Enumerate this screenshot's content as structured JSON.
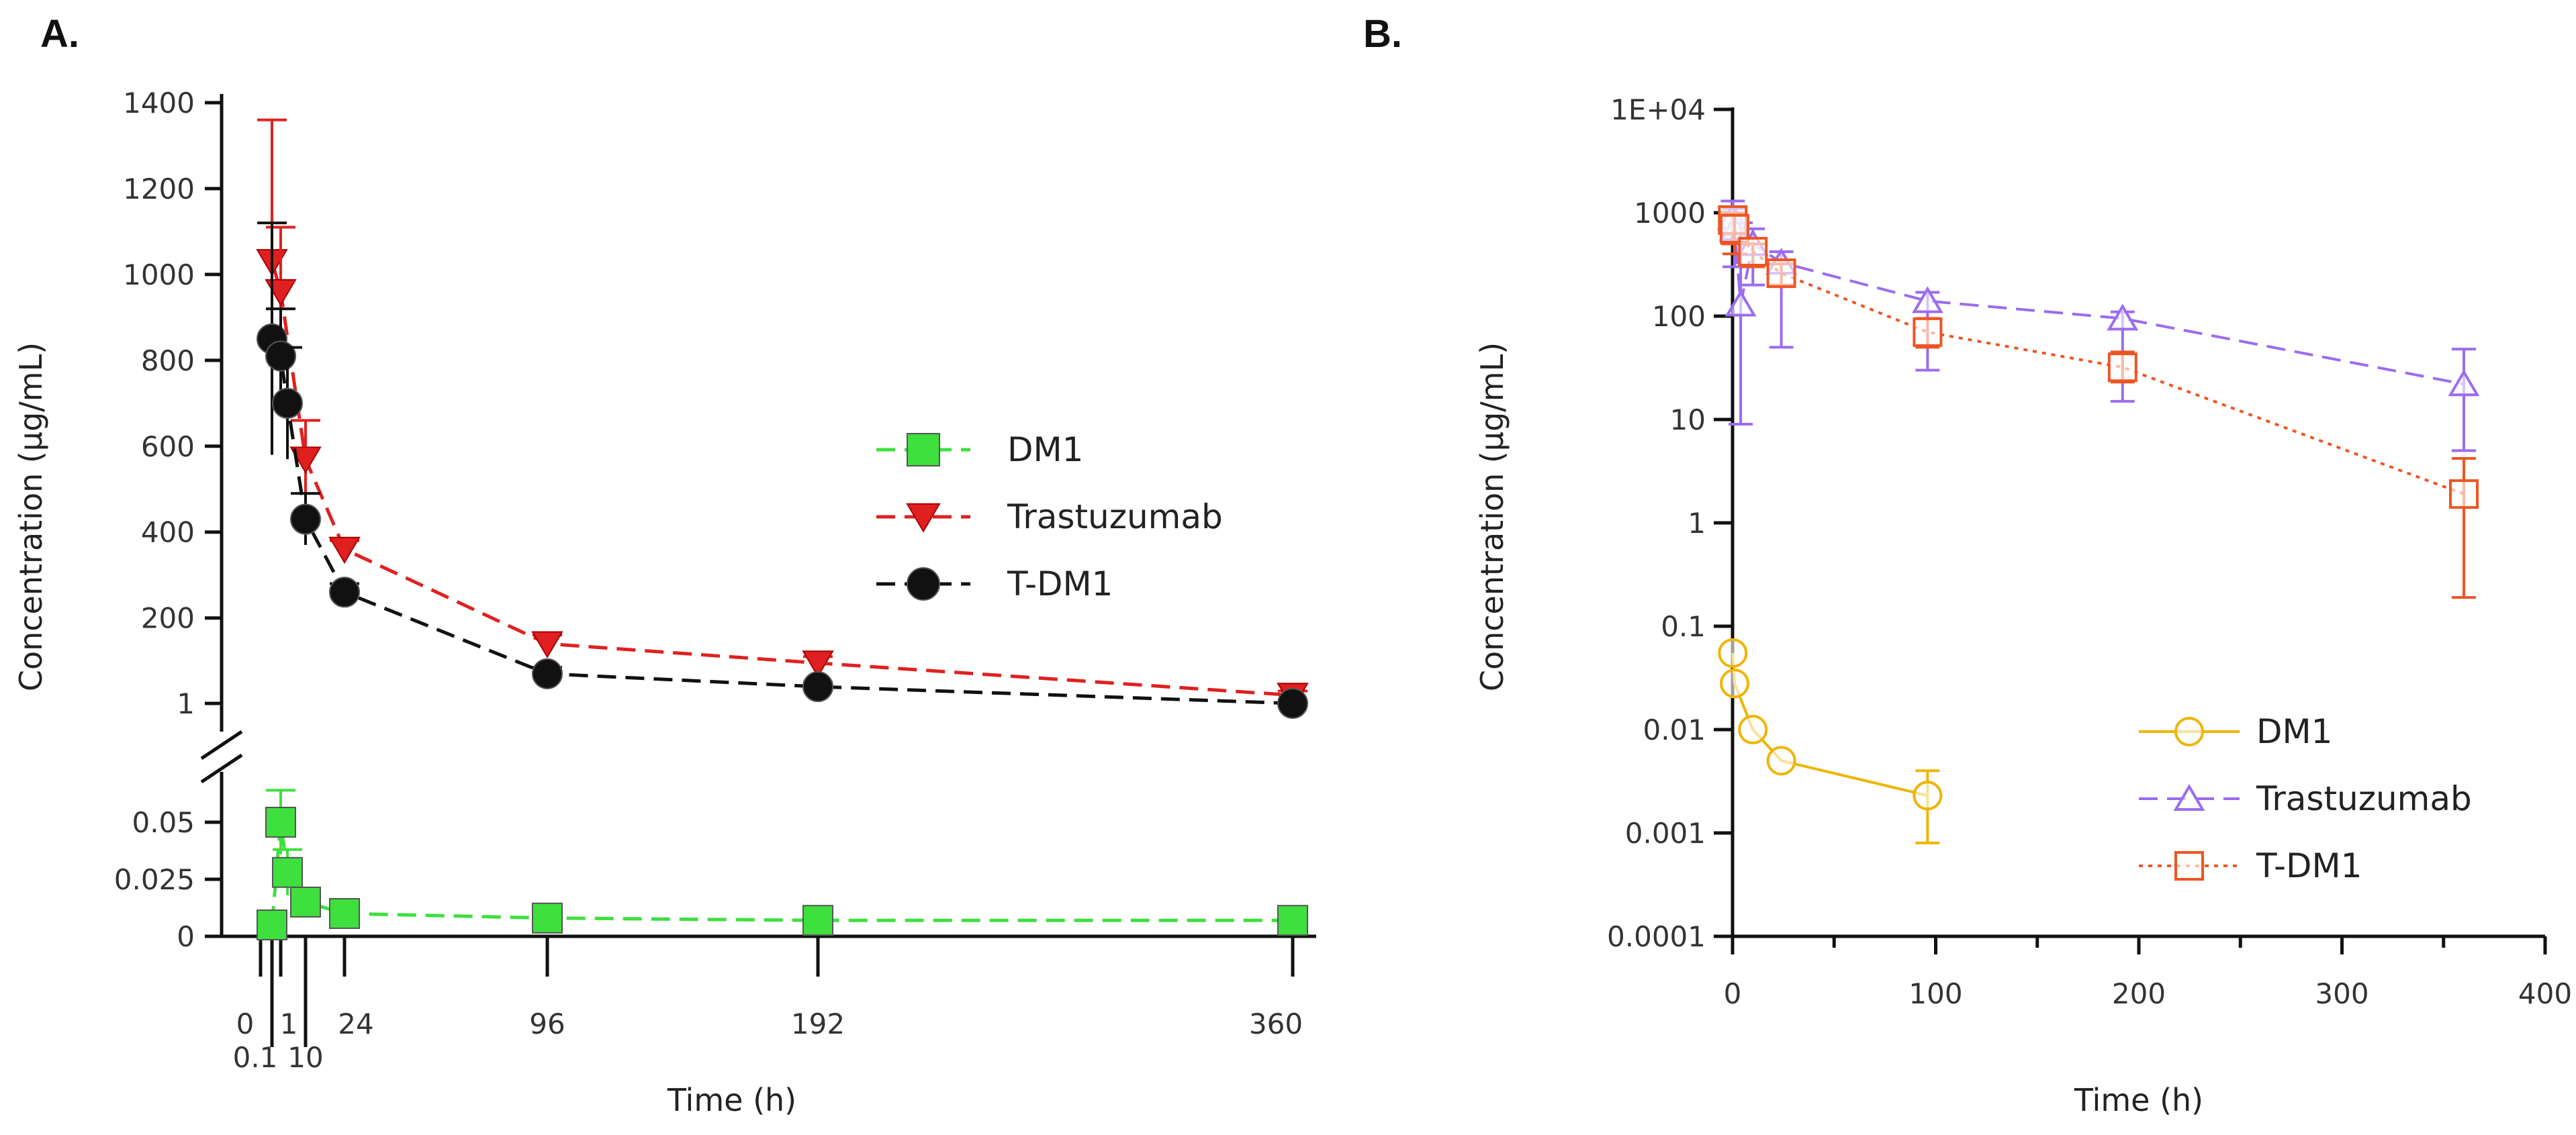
{
  "chart_data": [
    {
      "panel": "A.",
      "type": "line",
      "xlabel": "Time (h)",
      "ylabel": "Concentration (µg/mL)",
      "x_ticks": [
        "0",
        "0.1",
        "1",
        "10",
        "24",
        "96",
        "192",
        "360"
      ],
      "y_ticks_upper": [
        "1",
        "200",
        "400",
        "600",
        "800",
        "1000",
        "1200",
        "1400"
      ],
      "y_ticks_lower": [
        "0",
        "0.025",
        "0.05"
      ],
      "legend": "right",
      "series": [
        {
          "name": "DM1",
          "color": "#3ee03e",
          "marker": "square",
          "line": "dashed",
          "x": [
            0.1,
            1,
            4,
            10,
            24,
            96,
            192,
            360
          ],
          "y": [
            0.005,
            0.05,
            0.028,
            0.015,
            0.01,
            0.008,
            0.007,
            0.007
          ],
          "err": [
            0.002,
            0.014,
            0.01,
            0.004,
            0.003,
            0.002,
            0.002,
            0.002
          ]
        },
        {
          "name": "Trastuzumab",
          "color": "#e02020",
          "marker": "triangle-down",
          "line": "dashed",
          "x": [
            0.1,
            1,
            10,
            24,
            96,
            192,
            360
          ],
          "y": [
            1030,
            960,
            570,
            360,
            140,
            95,
            20
          ],
          "err": [
            330,
            150,
            90,
            20,
            20,
            15,
            10
          ]
        },
        {
          "name": "T-DM1",
          "color": "#111111",
          "marker": "circle",
          "line": "dashed",
          "x": [
            0.1,
            1,
            4,
            10,
            24,
            96,
            192,
            360
          ],
          "y": [
            850,
            810,
            700,
            430,
            260,
            70,
            40,
            1
          ],
          "err": [
            270,
            110,
            130,
            60,
            20,
            15,
            10,
            5
          ]
        }
      ]
    },
    {
      "panel": "B.",
      "type": "line",
      "xlabel": "Time (h)",
      "ylabel": "Concentration (µg/mL)",
      "xlim": [
        0,
        400
      ],
      "x_ticks": [
        "0",
        "100",
        "200",
        "300",
        "400"
      ],
      "y_scale": "log",
      "ylim": [
        0.0001,
        10000
      ],
      "y_ticks": [
        "0.0001",
        "0.001",
        "0.01",
        "0.1",
        "1",
        "10",
        "100",
        "1000",
        "1E+04"
      ],
      "legend": "bottom-right",
      "series": [
        {
          "name": "DM1",
          "color": "#f0b400",
          "marker": "circle-open",
          "line": "solid",
          "x": [
            0.1,
            1,
            10,
            24,
            96
          ],
          "y": [
            0.055,
            0.028,
            0.01,
            0.005,
            0.0023
          ],
          "err_low": [
            0.0,
            0.0,
            0.0,
            0.0,
            0.0008
          ],
          "err_high": [
            0.0,
            0.0,
            0.0,
            0.0,
            0.004
          ]
        },
        {
          "name": "Trastuzumab",
          "color": "#9b6cf0",
          "marker": "triangle-up-open",
          "line": "dashed",
          "x": [
            0.1,
            1,
            4,
            10,
            24,
            96,
            192,
            360
          ],
          "y": [
            900,
            700,
            130,
            500,
            330,
            140,
            95,
            22
          ],
          "err_low": [
            600,
            300,
            9,
            200,
            50,
            30,
            15,
            5
          ],
          "err_high": [
            1300,
            1100,
            800,
            700,
            420,
            170,
            110,
            48
          ]
        },
        {
          "name": "T-DM1",
          "color": "#ee5522",
          "marker": "square-open",
          "line": "dotted",
          "x": [
            0.1,
            1,
            10,
            24,
            96,
            192,
            360
          ],
          "y": [
            850,
            700,
            420,
            260,
            70,
            32,
            1.9
          ],
          "err_low": [
            500,
            400,
            300,
            200,
            50,
            23,
            0.19
          ],
          "err_high": [
            1000,
            950,
            500,
            320,
            95,
            45,
            4.2
          ]
        }
      ]
    }
  ]
}
